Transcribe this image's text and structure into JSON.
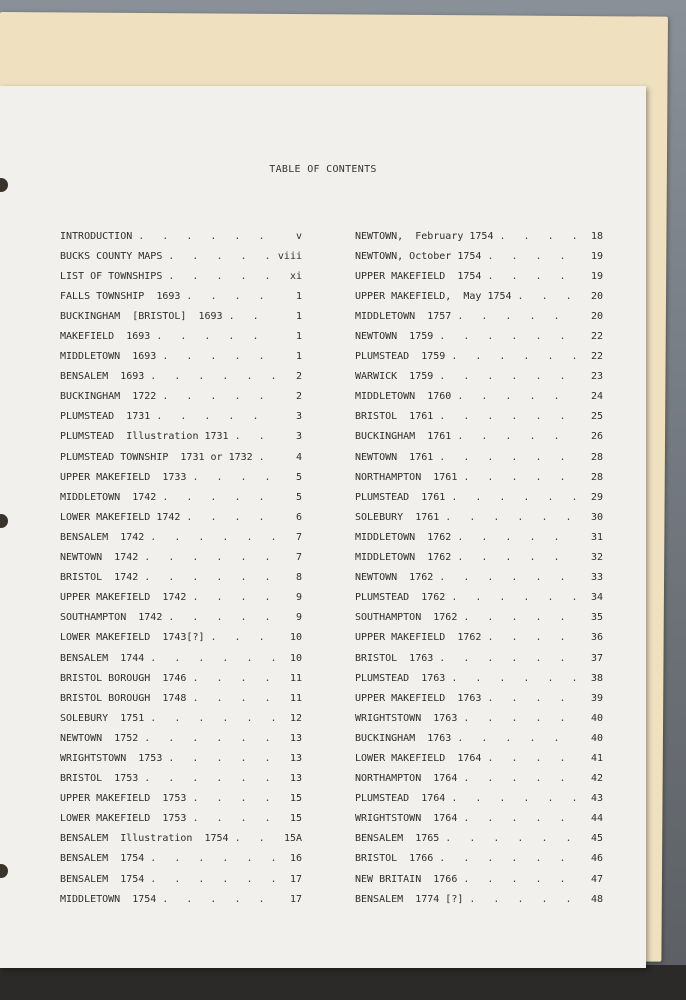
{
  "title": "TABLE OF CONTENTS",
  "left_column": [
    {
      "label": "INTRODUCTION",
      "page": "v"
    },
    {
      "label": "BUCKS COUNTY MAPS",
      "page": "viii"
    },
    {
      "label": "LIST OF TOWNSHIPS",
      "page": "xi"
    },
    {
      "label": "FALLS TOWNSHIP  1693",
      "page": "1"
    },
    {
      "label": "BUCKINGHAM  [BRISTOL]  1693",
      "page": "1"
    },
    {
      "label": "MAKEFIELD  1693",
      "page": "1"
    },
    {
      "label": "MIDDLETOWN  1693",
      "page": "1"
    },
    {
      "label": "BENSALEM  1693",
      "page": "2"
    },
    {
      "label": "BUCKINGHAM  1722",
      "page": "2"
    },
    {
      "label": "PLUMSTEAD  1731",
      "page": "3"
    },
    {
      "label": "PLUMSTEAD  Illustration 1731",
      "page": "3"
    },
    {
      "label": "PLUMSTEAD TOWNSHIP  1731 or 1732",
      "page": "4"
    },
    {
      "label": "UPPER MAKEFIELD  1733",
      "page": "5"
    },
    {
      "label": "MIDDLETOWN  1742",
      "page": "5"
    },
    {
      "label": "LOWER MAKEFIELD 1742",
      "page": "6"
    },
    {
      "label": "BENSALEM  1742",
      "page": "7"
    },
    {
      "label": "NEWTOWN  1742",
      "page": "7"
    },
    {
      "label": "BRISTOL  1742",
      "page": "8"
    },
    {
      "label": "UPPER MAKEFIELD  1742",
      "page": "9"
    },
    {
      "label": "SOUTHAMPTON  1742",
      "page": "9"
    },
    {
      "label": "LOWER MAKEFIELD  1743[?]",
      "page": "10"
    },
    {
      "label": "BENSALEM  1744",
      "page": "10"
    },
    {
      "label": "BRISTOL BOROUGH  1746",
      "page": "11"
    },
    {
      "label": "BRISTOL BOROUGH  1748",
      "page": "11"
    },
    {
      "label": "SOLEBURY  1751",
      "page": "12"
    },
    {
      "label": "NEWTOWN  1752",
      "page": "13"
    },
    {
      "label": "WRIGHTSTOWN  1753",
      "page": "13"
    },
    {
      "label": "BRISTOL  1753",
      "page": "13"
    },
    {
      "label": "UPPER MAKEFIELD  1753",
      "page": "15"
    },
    {
      "label": "LOWER MAKEFIELD  1753",
      "page": "15"
    },
    {
      "label": "BENSALEM  Illustration  1754",
      "page": "15A"
    },
    {
      "label": "BENSALEM  1754",
      "page": "16"
    },
    {
      "label": "BENSALEM  1754",
      "page": "17"
    },
    {
      "label": "MIDDLETOWN  1754",
      "page": "17"
    }
  ],
  "right_column": [
    {
      "label": "NEWTOWN,  February 1754",
      "page": "18"
    },
    {
      "label": "NEWTOWN, October 1754",
      "page": "19"
    },
    {
      "label": "UPPER MAKEFIELD  1754",
      "page": "19"
    },
    {
      "label": "UPPER MAKEFIELD,  May 1754",
      "page": "20"
    },
    {
      "label": "MIDDLETOWN  1757",
      "page": "20"
    },
    {
      "label": "NEWTOWN  1759",
      "page": "22"
    },
    {
      "label": "PLUMSTEAD  1759",
      "page": "22"
    },
    {
      "label": "WARWICK  1759",
      "page": "23"
    },
    {
      "label": "MIDDLETOWN  1760",
      "page": "24"
    },
    {
      "label": "BRISTOL  1761",
      "page": "25"
    },
    {
      "label": "BUCKINGHAM  1761",
      "page": "26"
    },
    {
      "label": "NEWTOWN  1761",
      "page": "28"
    },
    {
      "label": "NORTHAMPTON  1761",
      "page": "28"
    },
    {
      "label": "PLUMSTEAD  1761",
      "page": "29"
    },
    {
      "label": "SOLEBURY  1761",
      "page": "30"
    },
    {
      "label": "MIDDLETOWN  1762",
      "page": "31"
    },
    {
      "label": "MIDDLETOWN  1762",
      "page": "32"
    },
    {
      "label": "NEWTOWN  1762",
      "page": "33"
    },
    {
      "label": "PLUMSTEAD  1762",
      "page": "34"
    },
    {
      "label": "SOUTHAMPTON  1762",
      "page": "35"
    },
    {
      "label": "UPPER MAKEFIELD  1762",
      "page": "36"
    },
    {
      "label": "BRISTOL  1763",
      "page": "37"
    },
    {
      "label": "PLUMSTEAD  1763",
      "page": "38"
    },
    {
      "label": "UPPER MAKEFIELD  1763",
      "page": "39"
    },
    {
      "label": "WRIGHTSTOWN  1763",
      "page": "40"
    },
    {
      "label": "BUCKINGHAM  1763",
      "page": "40"
    },
    {
      "label": "LOWER MAKEFIELD  1764",
      "page": "41"
    },
    {
      "label": "NORTHAMPTON  1764",
      "page": "42"
    },
    {
      "label": "PLUMSTEAD  1764",
      "page": "43"
    },
    {
      "label": "WRIGHTSTOWN  1764",
      "page": "44"
    },
    {
      "label": "BENSALEM  1765",
      "page": "45"
    },
    {
      "label": "BRISTOL  1766",
      "page": "46"
    },
    {
      "label": "NEW BRITAIN  1766",
      "page": "47"
    },
    {
      "label": "BENSALEM  1774 [?]",
      "page": "48"
    }
  ]
}
